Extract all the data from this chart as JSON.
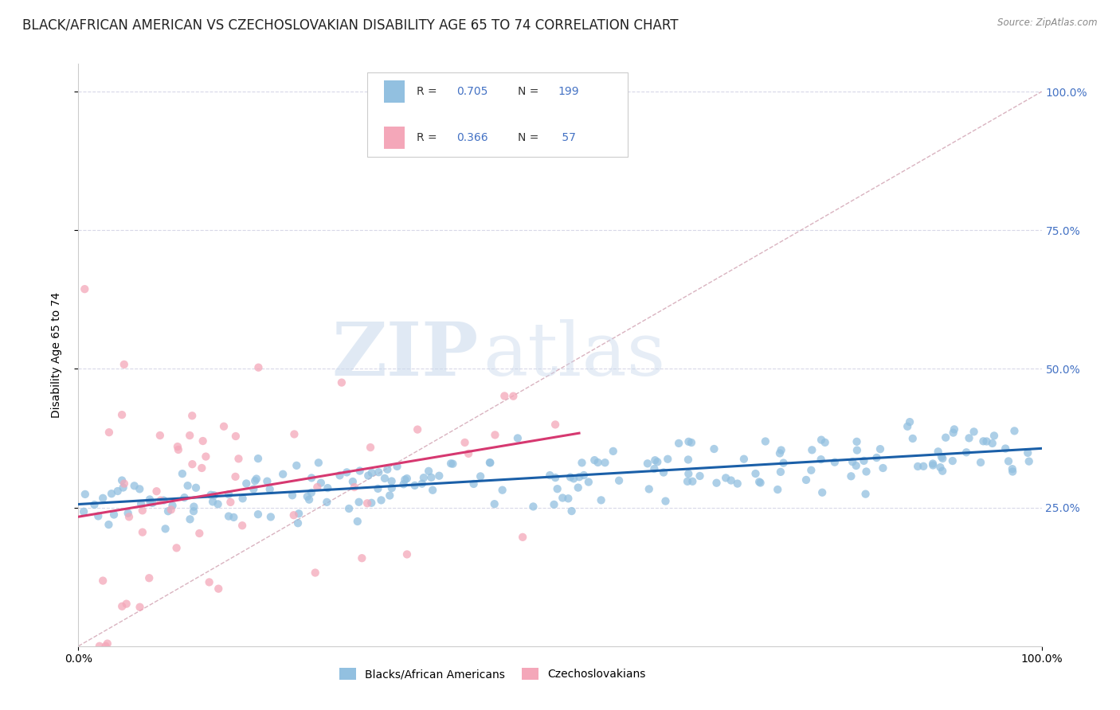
{
  "title": "BLACK/AFRICAN AMERICAN VS CZECHOSLOVAKIAN DISABILITY AGE 65 TO 74 CORRELATION CHART",
  "source": "Source: ZipAtlas.com",
  "ylabel": "Disability Age 65 to 74",
  "x_range": [
    0.0,
    1.0
  ],
  "y_range": [
    0.0,
    1.05
  ],
  "blue_R": 0.705,
  "blue_N": 199,
  "pink_R": 0.366,
  "pink_N": 57,
  "blue_color": "#92c0e0",
  "pink_color": "#f4a7b9",
  "blue_line_color": "#1a5fa8",
  "pink_line_color": "#d63870",
  "diagonal_color": "#d0a0b0",
  "grid_color": "#d8d8e8",
  "legend_label_blue": "Blacks/African Americans",
  "legend_label_pink": "Czechoslovakians",
  "watermark_zip": "ZIP",
  "watermark_atlas": "atlas",
  "title_fontsize": 12,
  "label_fontsize": 10,
  "tick_fontsize": 10,
  "right_tick_color": "#4472c4",
  "blue_seed": 42,
  "pink_seed": 123
}
